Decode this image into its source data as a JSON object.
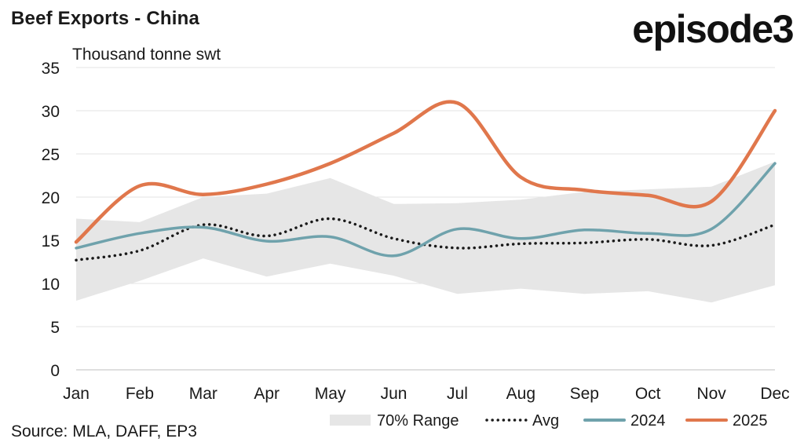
{
  "chart_data": {
    "type": "line",
    "title": "Beef Exports - China",
    "ylabel": "Thousand tonne swt",
    "ylim": [
      0,
      35
    ],
    "yticks": [
      0,
      5,
      10,
      15,
      20,
      25,
      30,
      35
    ],
    "grid": true,
    "legend_position": "bottom",
    "categories": [
      "Jan",
      "Feb",
      "Mar",
      "Apr",
      "May",
      "Jun",
      "Jul",
      "Aug",
      "Sep",
      "Oct",
      "Nov",
      "Dec"
    ],
    "range": {
      "name": "70% Range",
      "color": "#e6e6e6",
      "low": [
        8.0,
        10.3,
        12.9,
        10.8,
        12.3,
        10.9,
        8.8,
        9.4,
        8.8,
        9.1,
        7.8,
        9.8
      ],
      "high": [
        17.5,
        17.1,
        20.0,
        20.4,
        22.2,
        19.2,
        19.3,
        19.7,
        20.6,
        20.9,
        21.2,
        24.1
      ]
    },
    "series": [
      {
        "name": "Avg",
        "color": "#1a1a1a",
        "style": "dotted",
        "values": [
          12.7,
          13.8,
          16.8,
          15.5,
          17.5,
          15.2,
          14.1,
          14.6,
          14.7,
          15.1,
          14.4,
          16.8
        ]
      },
      {
        "name": "2024",
        "color": "#6fa2ac",
        "style": "solid",
        "values": [
          14.1,
          15.8,
          16.5,
          14.9,
          15.4,
          13.2,
          16.3,
          15.2,
          16.2,
          15.8,
          16.3,
          23.9
        ]
      },
      {
        "name": "2025",
        "color": "#e0774c",
        "style": "solid",
        "values": [
          14.8,
          21.3,
          20.3,
          21.5,
          23.9,
          27.4,
          30.9,
          22.3,
          20.8,
          20.2,
          19.5,
          30.0
        ]
      }
    ]
  },
  "brand": {
    "logo_text": "episode3"
  },
  "source": "Source: MLA, DAFF, EP3"
}
